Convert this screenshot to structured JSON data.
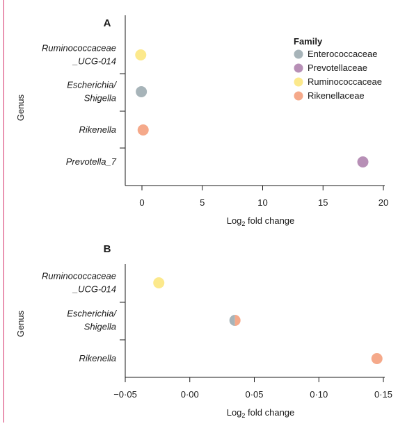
{
  "colors": {
    "Enterococcaceae": "#a7b4b9",
    "Prevotellaceae": "#b78fb6",
    "Ruminococcaceae": "#fce98c",
    "Rikenellaceae": "#f5a98a"
  },
  "legend": {
    "title": "Family",
    "items": [
      "Enterococcaceae",
      "Prevotellaceae",
      "Ruminococcaceae",
      "Rikenellaceae"
    ]
  },
  "chart_data": [
    {
      "panel": "A",
      "type": "scatter",
      "xlabel_main": "Log",
      "xlabel_sub": "2",
      "xlabel_rest": " fold change",
      "ylabel": "Genus",
      "xlim": [
        -1.2,
        20
      ],
      "xticks": [
        0,
        5,
        10,
        15,
        20
      ],
      "xtick_labels": [
        "0",
        "5",
        "10",
        "15",
        "20"
      ],
      "categories": [
        [
          "Ruminococcaceae",
          "_UCG-014"
        ],
        [
          "Escherichia/",
          "Shigella"
        ],
        [
          "Rikenella"
        ],
        [
          "Prevotella_7"
        ]
      ],
      "points": [
        {
          "genus_index": 0,
          "x": -0.1,
          "family": "Ruminococcaceae"
        },
        {
          "genus_index": 1,
          "x": -0.05,
          "family": "Enterococcaceae"
        },
        {
          "genus_index": 2,
          "x": 0.1,
          "family": "Rikenellaceae"
        },
        {
          "genus_index": 3,
          "x": 18.3,
          "family": "Prevotellaceae"
        }
      ]
    },
    {
      "panel": "B",
      "type": "scatter",
      "xlabel_main": "Log",
      "xlabel_sub": "2",
      "xlabel_rest": " fold change",
      "ylabel": "Genus",
      "xlim": [
        -0.05,
        0.15
      ],
      "xticks": [
        -0.05,
        0,
        0.05,
        0.1,
        0.15
      ],
      "xtick_labels": [
        "−0·05",
        "0·00",
        "0·05",
        "0·10",
        "0·15"
      ],
      "categories": [
        [
          "Ruminococcaceae",
          "_UCG-014"
        ],
        [
          "Escherichia/",
          "Shigella"
        ],
        [
          "Rikenella"
        ]
      ],
      "points": [
        {
          "genus_index": 0,
          "x": -0.024,
          "family": "Ruminococcaceae"
        },
        {
          "genus_index": 1,
          "x": 0.035,
          "family": "Enterococcaceae",
          "split_with": "Rikenellaceae"
        },
        {
          "genus_index": 2,
          "x": 0.145,
          "family": "Rikenellaceae"
        }
      ]
    }
  ]
}
